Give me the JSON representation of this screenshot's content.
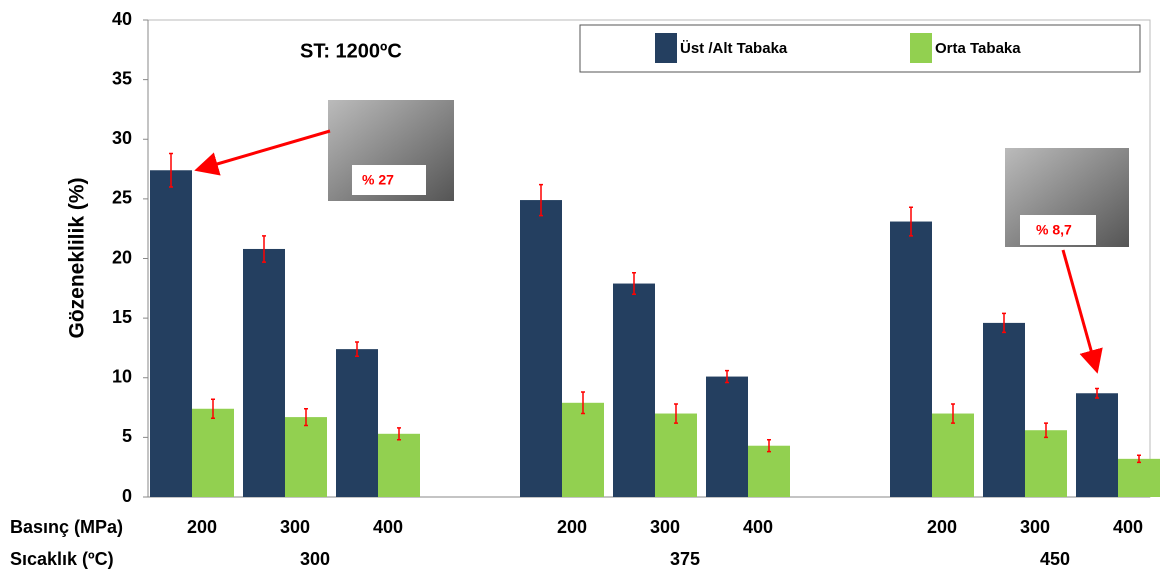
{
  "chart_data": {
    "type": "bar",
    "title": "ST: 1200ºC",
    "y_label": "Gözeneklilik (%)",
    "x_row_labels": [
      "Basınç (MPa)",
      "Sıcaklık (ºC)"
    ],
    "categories": [
      "200",
      "300",
      "400",
      "200",
      "300",
      "400",
      "200",
      "300",
      "400"
    ],
    "groups": [
      "300",
      "375",
      "450"
    ],
    "series": [
      {
        "name": "Üst /Alt Tabaka",
        "color": "#243f60",
        "values": [
          27.4,
          20.8,
          12.4,
          24.9,
          17.9,
          10.1,
          23.1,
          14.6,
          8.7
        ],
        "errors": [
          1.4,
          1.1,
          0.6,
          1.3,
          0.9,
          0.5,
          1.2,
          0.8,
          0.4
        ]
      },
      {
        "name": "Orta Tabaka",
        "color": "#92d050",
        "values": [
          7.4,
          6.7,
          5.3,
          7.9,
          7.0,
          4.3,
          7.0,
          5.6,
          3.2
        ],
        "errors": [
          0.8,
          0.7,
          0.5,
          0.9,
          0.8,
          0.5,
          0.8,
          0.6,
          0.3
        ]
      }
    ],
    "annotations": [
      "% 27",
      "% 8,7"
    ],
    "ylim": [
      0,
      40
    ],
    "yticks": [
      0,
      5,
      10,
      15,
      20,
      25,
      30,
      35,
      40
    ],
    "error_color": "#ff0000"
  }
}
